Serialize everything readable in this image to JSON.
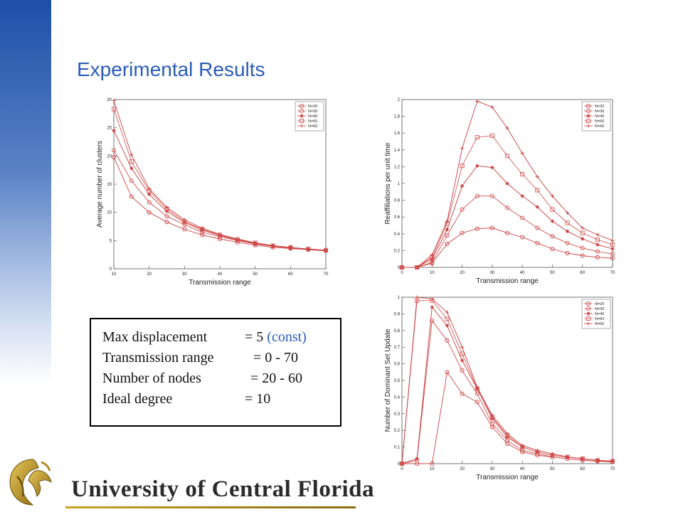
{
  "slide": {
    "title": "Experimental Results",
    "accent_color": "#2a5cb8",
    "params": {
      "displacement_label": "Max displacement",
      "displacement_value": "= 5",
      "displacement_note": "(const)",
      "range_label": "Transmission range",
      "range_value": "= 0 - 70",
      "nodes_label": "Number of nodes",
      "nodes_value": "= 20 - 60",
      "degree_label": "Ideal degree",
      "degree_value": "= 10"
    },
    "footer": {
      "university_name": "University of Central Florida",
      "logo_icon": "pegasus-logo-icon"
    }
  },
  "chart_data": [
    {
      "type": "line",
      "xlabel": "Transmission range",
      "ylabel": "Average number of clusters",
      "xlim": [
        10,
        70
      ],
      "ylim": [
        0,
        30
      ],
      "xticks": [
        10,
        20,
        30,
        40,
        50,
        60,
        70
      ],
      "yticks": [
        0,
        5,
        10,
        15,
        20,
        25,
        30
      ],
      "legend_position": "top-right",
      "grid": false,
      "x": [
        10,
        15,
        20,
        25,
        30,
        35,
        40,
        45,
        50,
        55,
        60,
        65,
        70
      ],
      "series": [
        {
          "name": "N=20",
          "marker": "circle",
          "values": [
            19.8,
            12.8,
            10.0,
            8.3,
            7.0,
            6.0,
            5.3,
            4.7,
            4.2,
            3.8,
            3.6,
            3.4,
            3.2
          ]
        },
        {
          "name": "N=30",
          "marker": "circle",
          "values": [
            21.0,
            15.6,
            11.8,
            9.3,
            7.8,
            6.5,
            5.7,
            5.0,
            4.4,
            4.0,
            3.7,
            3.4,
            3.2
          ]
        },
        {
          "name": "N=40",
          "marker": "star",
          "values": [
            24.5,
            17.8,
            13.2,
            10.2,
            8.2,
            6.9,
            5.9,
            5.1,
            4.5,
            4.0,
            3.7,
            3.4,
            3.2
          ]
        },
        {
          "name": "N=50",
          "marker": "square",
          "values": [
            28.3,
            19.0,
            13.8,
            10.6,
            8.4,
            7.0,
            6.0,
            5.2,
            4.6,
            4.1,
            3.8,
            3.5,
            3.3
          ]
        },
        {
          "name": "N=60",
          "marker": "plus",
          "values": [
            29.8,
            20.2,
            14.2,
            10.9,
            8.7,
            7.2,
            6.1,
            5.3,
            4.6,
            4.1,
            3.8,
            3.5,
            3.3
          ]
        }
      ]
    },
    {
      "type": "line",
      "xlabel": "Transmission range",
      "ylabel": "Reaffiliations per unit time",
      "xlim": [
        0,
        70
      ],
      "ylim": [
        0,
        2
      ],
      "xticks": [
        0,
        10,
        20,
        30,
        40,
        50,
        60,
        70
      ],
      "yticks": [
        0,
        0.2,
        0.4,
        0.6,
        0.8,
        1,
        1.2,
        1.4,
        1.6,
        1.8,
        2
      ],
      "legend_position": "top-right",
      "grid": false,
      "x": [
        0,
        5,
        10,
        15,
        20,
        25,
        30,
        35,
        40,
        45,
        50,
        55,
        60,
        65,
        70
      ],
      "series": [
        {
          "name": "N=20",
          "marker": "circle",
          "values": [
            0,
            0,
            0.05,
            0.28,
            0.41,
            0.46,
            0.47,
            0.41,
            0.36,
            0.29,
            0.22,
            0.17,
            0.14,
            0.12,
            0.11
          ]
        },
        {
          "name": "N=30",
          "marker": "circle",
          "values": [
            0,
            0,
            0.06,
            0.38,
            0.69,
            0.85,
            0.85,
            0.71,
            0.59,
            0.47,
            0.37,
            0.29,
            0.23,
            0.19,
            0.16
          ]
        },
        {
          "name": "N=40",
          "marker": "star",
          "values": [
            0,
            0,
            0.1,
            0.45,
            0.97,
            1.21,
            1.19,
            1.0,
            0.85,
            0.72,
            0.55,
            0.43,
            0.34,
            0.27,
            0.22
          ]
        },
        {
          "name": "N=50",
          "marker": "square",
          "values": [
            0,
            0,
            0.12,
            0.52,
            1.21,
            1.55,
            1.57,
            1.33,
            1.11,
            0.92,
            0.69,
            0.53,
            0.41,
            0.33,
            0.27
          ]
        },
        {
          "name": "N=60",
          "marker": "plus",
          "values": [
            0,
            0,
            0.15,
            0.55,
            1.42,
            1.98,
            1.91,
            1.66,
            1.36,
            1.08,
            0.85,
            0.65,
            0.47,
            0.39,
            0.32
          ]
        }
      ]
    },
    {
      "type": "line",
      "xlabel": "Transmission range",
      "ylabel": "Number of Dominant Set Update",
      "xlim": [
        0,
        70
      ],
      "ylim": [
        0,
        1
      ],
      "xticks": [
        0,
        10,
        20,
        30,
        40,
        50,
        60,
        70
      ],
      "yticks": [
        0,
        0.1,
        0.2,
        0.3,
        0.4,
        0.5,
        0.6,
        0.7,
        0.8,
        0.9,
        1
      ],
      "legend_position": "top-right",
      "grid": false,
      "x": [
        0,
        5,
        10,
        15,
        20,
        25,
        30,
        35,
        40,
        45,
        50,
        55,
        60,
        65,
        70
      ],
      "series": [
        {
          "name": "N=20",
          "marker": "circle",
          "values": [
            0,
            0,
            0,
            0.55,
            0.42,
            0.37,
            0.22,
            0.12,
            0.07,
            0.05,
            0.04,
            0.03,
            0.02,
            0.015,
            0.01
          ]
        },
        {
          "name": "N=30",
          "marker": "circle",
          "values": [
            0,
            0.02,
            0.86,
            0.74,
            0.56,
            0.42,
            0.24,
            0.14,
            0.08,
            0.06,
            0.04,
            0.03,
            0.02,
            0.015,
            0.01
          ]
        },
        {
          "name": "N=40",
          "marker": "star",
          "values": [
            0,
            0.03,
            0.94,
            0.83,
            0.62,
            0.45,
            0.27,
            0.16,
            0.1,
            0.07,
            0.05,
            0.04,
            0.03,
            0.02,
            0.015
          ]
        },
        {
          "name": "N=50",
          "marker": "square",
          "values": [
            0,
            0.98,
            0.98,
            0.87,
            0.66,
            0.45,
            0.28,
            0.17,
            0.1,
            0.07,
            0.05,
            0.04,
            0.03,
            0.02,
            0.015
          ]
        },
        {
          "name": "N=60",
          "marker": "plus",
          "values": [
            0,
            1.0,
            0.99,
            0.91,
            0.7,
            0.46,
            0.29,
            0.18,
            0.11,
            0.08,
            0.06,
            0.04,
            0.03,
            0.02,
            0.015
          ]
        }
      ]
    }
  ]
}
